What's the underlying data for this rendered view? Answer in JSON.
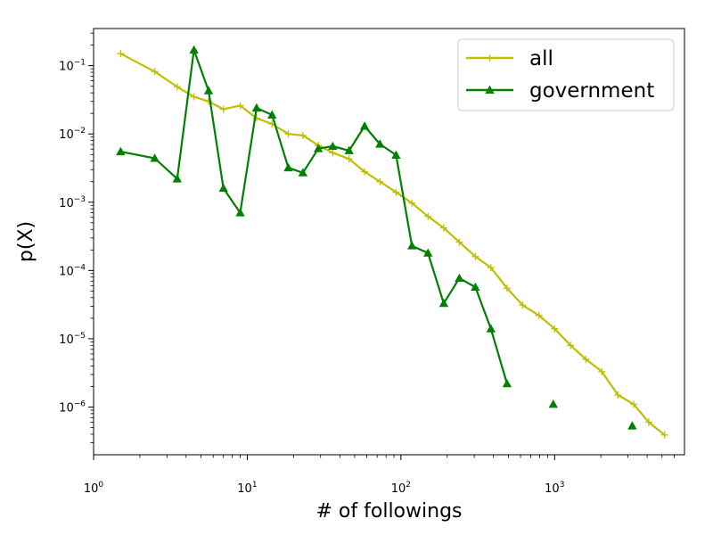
{
  "chart_data": {
    "type": "line",
    "title": "",
    "xlabel": "# of followings",
    "ylabel": "p(X)",
    "xscale": "log",
    "yscale": "log",
    "xlim": [
      1,
      7000
    ],
    "ylim": [
      2e-07,
      0.35
    ],
    "grid": false,
    "legend_position": "top-right",
    "x_ticks": [
      {
        "value": 1,
        "base": "10",
        "exp": "0"
      },
      {
        "value": 10,
        "base": "10",
        "exp": "1"
      },
      {
        "value": 100,
        "base": "10",
        "exp": "2"
      },
      {
        "value": 1000,
        "base": "10",
        "exp": "3"
      }
    ],
    "y_ticks": [
      {
        "value": 1e-06,
        "base": "10",
        "exp": "−6"
      },
      {
        "value": 1e-05,
        "base": "10",
        "exp": "−5"
      },
      {
        "value": 0.0001,
        "base": "10",
        "exp": "−4"
      },
      {
        "value": 0.001,
        "base": "10",
        "exp": "−3"
      },
      {
        "value": 0.01,
        "base": "10",
        "exp": "−2"
      },
      {
        "value": 0.1,
        "base": "10",
        "exp": "−1"
      }
    ],
    "series": [
      {
        "name": "all",
        "color": "#bfbf00",
        "marker": "plus",
        "segments": [
          [
            [
              1.5,
              0.15
            ],
            [
              2.5,
              0.082
            ],
            [
              3.5,
              0.049
            ],
            [
              4.5,
              0.035
            ],
            [
              5.6,
              0.03
            ],
            [
              7.0,
              0.023
            ],
            [
              9.0,
              0.026
            ],
            [
              11.5,
              0.017
            ],
            [
              14.5,
              0.014
            ],
            [
              18.5,
              0.01
            ],
            [
              23,
              0.0095
            ],
            [
              29,
              0.0068
            ],
            [
              36,
              0.0053
            ],
            [
              46,
              0.0043
            ],
            [
              58,
              0.0028
            ],
            [
              73,
              0.002
            ],
            [
              93,
              0.0014
            ],
            [
              118,
              0.00097
            ],
            [
              150,
              0.00062
            ],
            [
              190,
              0.00042
            ],
            [
              240,
              0.00026
            ],
            [
              305,
              0.00016
            ],
            [
              385,
              0.00011
            ],
            [
              490,
              5.5e-05
            ],
            [
              620,
              3.1e-05
            ],
            [
              790,
              2.2e-05
            ],
            [
              1000,
              1.4e-05
            ],
            [
              1270,
              8e-06
            ],
            [
              1600,
              5e-06
            ],
            [
              2030,
              3.3e-06
            ],
            [
              2580,
              1.5e-06
            ],
            [
              3270,
              1.1e-06
            ],
            [
              4100,
              6e-07
            ],
            [
              5200,
              3.9e-07
            ]
          ]
        ]
      },
      {
        "name": "government",
        "color": "#008000",
        "marker": "triangle",
        "segments": [
          [
            [
              1.5,
              0.0055
            ],
            [
              2.5,
              0.0044
            ],
            [
              3.5,
              0.0022
            ],
            [
              4.5,
              0.17
            ],
            [
              5.6,
              0.043
            ],
            [
              7.0,
              0.0016
            ],
            [
              9.0,
              0.0007
            ],
            [
              11.5,
              0.024
            ],
            [
              14.5,
              0.019
            ],
            [
              18.5,
              0.0032
            ],
            [
              23,
              0.0027
            ],
            [
              29,
              0.0061
            ],
            [
              36,
              0.0066
            ],
            [
              46,
              0.0057
            ],
            [
              58,
              0.013
            ],
            [
              73,
              0.0071
            ],
            [
              93,
              0.0049
            ],
            [
              118,
              0.00023
            ],
            [
              150,
              0.00018
            ],
            [
              190,
              3.3e-05
            ],
            [
              240,
              7.7e-05
            ],
            [
              305,
              5.7e-05
            ],
            [
              385,
              1.4e-05
            ],
            [
              490,
              2.2e-06
            ]
          ],
          [
            [
              980,
              1.1e-06
            ]
          ],
          [
            [
              3200,
              5.3e-07
            ]
          ]
        ]
      }
    ]
  }
}
